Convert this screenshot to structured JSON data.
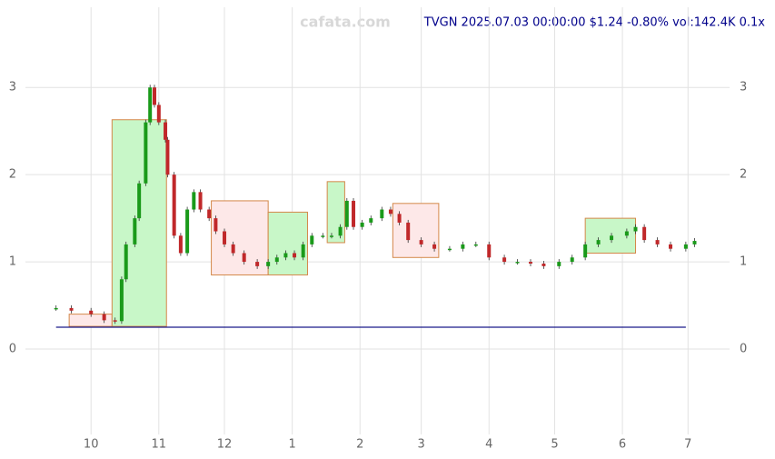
{
  "chart_data": {
    "type": "candlestick",
    "watermark": "cafata.com",
    "title": "TVGN 2025.07.03 00:00:00 $1.24 -0.80% vol:142.4K 0.1x",
    "xlim": [
      -30,
      292
    ],
    "ylim": [
      -0.98,
      3.92
    ],
    "xticks": [
      {
        "value": 0,
        "label": "10"
      },
      {
        "value": 31,
        "label": "11"
      },
      {
        "value": 61,
        "label": "12"
      },
      {
        "value": 92,
        "label": "1"
      },
      {
        "value": 123,
        "label": "2"
      },
      {
        "value": 151,
        "label": "3"
      },
      {
        "value": 182,
        "label": "4"
      },
      {
        "value": 212,
        "label": "5"
      },
      {
        "value": 243,
        "label": "6"
      },
      {
        "value": 273,
        "label": "7"
      }
    ],
    "yticks": [
      0,
      1,
      2,
      3
    ],
    "grid": true,
    "up_color": "#1a9a1a",
    "down_color": "#c0282a",
    "x": [
      -16,
      -9,
      0,
      6,
      11,
      14,
      16,
      20,
      22,
      25,
      27,
      29,
      31,
      34,
      35,
      38,
      41,
      44,
      47,
      50,
      54,
      57,
      61,
      65,
      70,
      76,
      81,
      85,
      89,
      93,
      97,
      101,
      106,
      110,
      114,
      117,
      120,
      124,
      128,
      133,
      137,
      141,
      145,
      151,
      157,
      164,
      170,
      176,
      182,
      189,
      195,
      201,
      207,
      214,
      220,
      226,
      232,
      238,
      245,
      249,
      253,
      259,
      265,
      272,
      276
    ],
    "values": [
      0.47,
      0.44,
      0.4,
      0.33,
      0.32,
      0.8,
      1.2,
      1.5,
      1.9,
      2.6,
      3.0,
      2.8,
      2.6,
      2.4,
      2.0,
      1.3,
      1.1,
      1.6,
      1.8,
      1.6,
      1.5,
      1.35,
      1.2,
      1.1,
      1.0,
      0.95,
      1.0,
      1.05,
      1.1,
      1.05,
      1.2,
      1.3,
      1.3,
      1.3,
      1.4,
      1.7,
      1.4,
      1.45,
      1.5,
      1.6,
      1.55,
      1.45,
      1.25,
      1.2,
      1.15,
      1.15,
      1.2,
      1.2,
      1.05,
      1.0,
      1.0,
      0.98,
      0.95,
      1.0,
      1.05,
      1.2,
      1.25,
      1.3,
      1.35,
      1.4,
      1.25,
      1.2,
      1.15,
      1.2,
      1.24
    ],
    "baseline": 0.25,
    "baseline_color": "#1a1a8a",
    "boxes": [
      {
        "x": [
          -10,
          9.6
        ],
        "y": [
          0.26,
          0.4
        ],
        "color": "#fde8e8"
      },
      {
        "x": [
          9.6,
          34.5
        ],
        "y": [
          0.26,
          2.63
        ],
        "color": "#c8f7c8"
      },
      {
        "x": [
          55,
          81
        ],
        "y": [
          0.85,
          1.7
        ],
        "color": "#fde8e8"
      },
      {
        "x": [
          81,
          99
        ],
        "y": [
          0.85,
          1.57
        ],
        "color": "#c8f7c8"
      },
      {
        "x": [
          108,
          116
        ],
        "y": [
          1.22,
          1.92
        ],
        "color": "#c8f7c8"
      },
      {
        "x": [
          138,
          159
        ],
        "y": [
          1.05,
          1.67
        ],
        "color": "#fde8e8"
      },
      {
        "x": [
          226,
          249
        ],
        "y": [
          1.1,
          1.5
        ],
        "color": "#c8f7c8"
      }
    ]
  }
}
